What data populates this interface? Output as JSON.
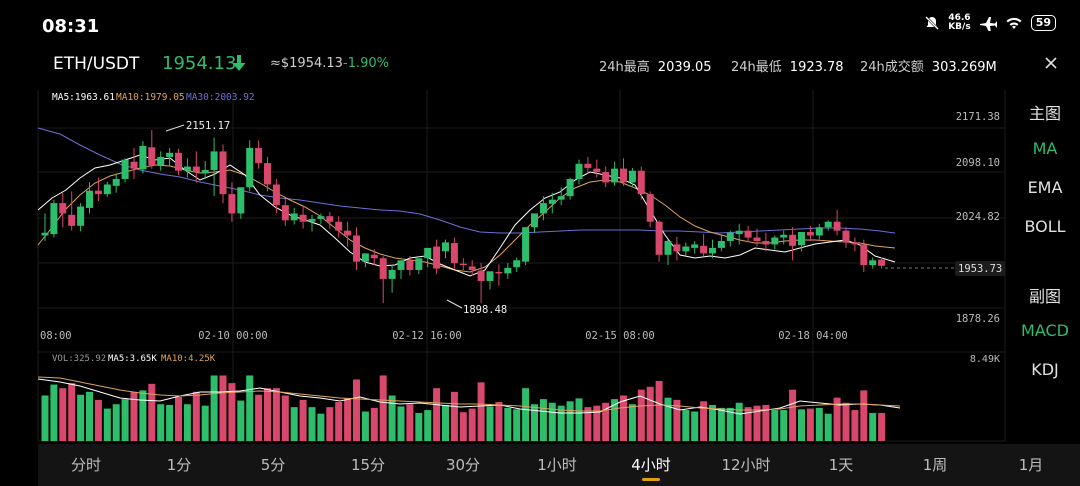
{
  "status_bar": {
    "time": "08:31",
    "net_speed_value": "46.6",
    "net_speed_unit": "KB/s",
    "battery": "59",
    "icons": [
      "mute-icon",
      "airplane-icon",
      "wifi-icon",
      "battery-icon"
    ]
  },
  "header": {
    "pair": "ETH/USDT",
    "price": "1954.13",
    "approx_price": "≈$1954.13",
    "change": "-1.90%",
    "high_label": "24h最高",
    "high_value": "2039.05",
    "low_label": "24h最低",
    "low_value": "1923.78",
    "volume_label": "24h成交额",
    "volume_value": "303.269M"
  },
  "colors": {
    "up": "#2ebd6a",
    "down": "#d8486c",
    "ma5": "#ffffff",
    "ma10": "#e0a35c",
    "ma30": "#6d6fd6",
    "accent": "#e0a106"
  },
  "main_chart": {
    "ma_labels": {
      "ma5": "MA5:1963.61",
      "ma10": "MA10:1979.05",
      "ma30": "MA30:2003.92"
    },
    "y_ticks": [
      "2171.38",
      "2098.10",
      "2024.82",
      "1953.73",
      "1878.26"
    ],
    "current_price_label": "1953.73",
    "max_marker": "2151.17",
    "min_marker": "1898.48",
    "x_labels": [
      "08:00",
      "02-10 00:00",
      "02-12 16:00",
      "02-15 08:00",
      "02-18 04:00"
    ]
  },
  "volume_chart": {
    "vol_label": "VOL:325.92",
    "ma5_label": "MA5:3.65K",
    "ma10_label": "MA10:4.25K",
    "max_label": "8.49K"
  },
  "side_menu": {
    "main_title": "主图",
    "ma": "MA",
    "ema": "EMA",
    "boll": "BOLL",
    "sub_title": "副图",
    "macd": "MACD",
    "kdj": "KDJ"
  },
  "tabs": [
    {
      "label": "分时"
    },
    {
      "label": "1分"
    },
    {
      "label": "5分"
    },
    {
      "label": "15分"
    },
    {
      "label": "30分"
    },
    {
      "label": "1小时"
    },
    {
      "label": "4小时",
      "active": true
    },
    {
      "label": "12小时"
    },
    {
      "label": "1天"
    },
    {
      "label": "1周"
    },
    {
      "label": "1月"
    }
  ],
  "chart_data": {
    "type": "candlestick",
    "interval": "4h",
    "price_axis": {
      "min": 1878.26,
      "max": 2171.38
    },
    "candles_ohlc": [
      [
        1998,
        2030,
        2002,
        1990
      ],
      [
        2000,
        2050,
        2045,
        1995
      ],
      [
        2045,
        2060,
        2030,
        2010
      ],
      [
        2028,
        2062,
        2012,
        2005
      ],
      [
        2012,
        2045,
        2040,
        2004
      ],
      [
        2038,
        2075,
        2063,
        2030
      ],
      [
        2063,
        2082,
        2058,
        2048
      ],
      [
        2058,
        2076,
        2072,
        2054
      ],
      [
        2070,
        2088,
        2080,
        2060
      ],
      [
        2080,
        2110,
        2108,
        2075
      ],
      [
        2105,
        2125,
        2095,
        2080
      ],
      [
        2094,
        2135,
        2128,
        2088
      ],
      [
        2126,
        2151,
        2100,
        2095
      ],
      [
        2100,
        2120,
        2112,
        2092
      ],
      [
        2112,
        2125,
        2118,
        2098
      ],
      [
        2118,
        2124,
        2092,
        2086
      ],
      [
        2092,
        2110,
        2098,
        2082
      ],
      [
        2098,
        2120,
        2090,
        2075
      ],
      [
        2088,
        2106,
        2093,
        2080
      ],
      [
        2093,
        2140,
        2120,
        2055
      ],
      [
        2120,
        2130,
        2058,
        2045
      ],
      [
        2058,
        2075,
        2030,
        2018
      ],
      [
        2030,
        2055,
        2068,
        2022
      ],
      [
        2068,
        2136,
        2125,
        2062
      ],
      [
        2125,
        2136,
        2103,
        2095
      ],
      [
        2103,
        2112,
        2072,
        2062
      ],
      [
        2072,
        2080,
        2042,
        2030
      ],
      [
        2042,
        2052,
        2020,
        2012
      ],
      [
        2020,
        2038,
        2030,
        2014
      ],
      [
        2028,
        2042,
        2018,
        2008
      ],
      [
        2018,
        2028,
        2022,
        2004
      ],
      [
        2022,
        2030,
        2026,
        2015
      ],
      [
        2026,
        2032,
        2018,
        2008
      ],
      [
        2018,
        2026,
        2005,
        1995
      ],
      [
        2005,
        2018,
        1998,
        1982
      ],
      [
        1998,
        2010,
        1960,
        1948
      ],
      [
        1960,
        1970,
        1972,
        1952
      ],
      [
        1970,
        1978,
        1965,
        1955
      ],
      [
        1965,
        1968,
        1935,
        1900
      ],
      [
        1935,
        1955,
        1948,
        1915
      ],
      [
        1948,
        1960,
        1962,
        1935
      ],
      [
        1962,
        1968,
        1948,
        1940
      ],
      [
        1948,
        1958,
        1965,
        1942
      ],
      [
        1965,
        1972,
        1980,
        1952
      ],
      [
        1982,
        1992,
        1950,
        1942
      ],
      [
        1975,
        1992,
        1988,
        1965
      ],
      [
        1987,
        1995,
        1958,
        1950
      ],
      [
        1957,
        1965,
        1955,
        1948
      ],
      [
        1953,
        1962,
        1948,
        1940
      ],
      [
        1947,
        1958,
        1932,
        1900
      ],
      [
        1932,
        1945,
        1946,
        1920
      ],
      [
        1945,
        1956,
        1943,
        1925
      ],
      [
        1943,
        1958,
        1951,
        1935
      ],
      [
        1952,
        1966,
        1962,
        1945
      ],
      [
        1960,
        2005,
        2010,
        1955
      ],
      [
        2010,
        2030,
        2030,
        2002
      ],
      [
        2030,
        2055,
        2045,
        2020
      ],
      [
        2044,
        2060,
        2050,
        2030
      ],
      [
        2050,
        2068,
        2055,
        2042
      ],
      [
        2055,
        2082,
        2080,
        2050
      ],
      [
        2080,
        2108,
        2102,
        2072
      ],
      [
        2102,
        2112,
        2096,
        2088
      ],
      [
        2095,
        2108,
        2090,
        2082
      ],
      [
        2090,
        2098,
        2075,
        2068
      ],
      [
        2075,
        2105,
        2095,
        2070
      ],
      [
        2095,
        2110,
        2075,
        2070
      ],
      [
        2075,
        2096,
        2092,
        2068
      ],
      [
        2092,
        2098,
        2058,
        2050
      ],
      [
        2058,
        2062,
        2018,
        2010
      ],
      [
        2018,
        2020,
        1970,
        1960
      ],
      [
        1970,
        1992,
        1990,
        1955
      ],
      [
        1985,
        1996,
        1975,
        1962
      ],
      [
        1975,
        1988,
        1982,
        1968
      ],
      [
        1980,
        1990,
        1985,
        1972
      ],
      [
        1983,
        2000,
        1972,
        1968
      ],
      [
        1972,
        1992,
        1980,
        1965
      ],
      [
        1980,
        1998,
        1990,
        1975
      ],
      [
        1990,
        2005,
        2002,
        1982
      ],
      [
        2000,
        2015,
        2005,
        1985
      ],
      [
        2005,
        2012,
        1995,
        1988
      ],
      [
        1995,
        2008,
        1990,
        1982
      ],
      [
        1990,
        2002,
        1985,
        1975
      ],
      [
        1985,
        1998,
        1995,
        1978
      ],
      [
        1995,
        2005,
        1999,
        1985
      ],
      [
        1999,
        2010,
        1983,
        1962
      ],
      [
        1984,
        1996,
        2003,
        1975
      ],
      [
        2003,
        2012,
        1998,
        1990
      ],
      [
        1998,
        2015,
        2010,
        1992
      ],
      [
        2010,
        2020,
        2018,
        2005
      ],
      [
        2018,
        2035,
        2005,
        1998
      ],
      [
        2005,
        2010,
        1988,
        1980
      ],
      [
        1988,
        1995,
        1985,
        1975
      ],
      [
        1985,
        1992,
        1955,
        1945
      ],
      [
        1955,
        1966,
        1962,
        1950
      ],
      [
        1963,
        1966,
        1954,
        1950
      ]
    ],
    "volume_max": "8.49K"
  }
}
